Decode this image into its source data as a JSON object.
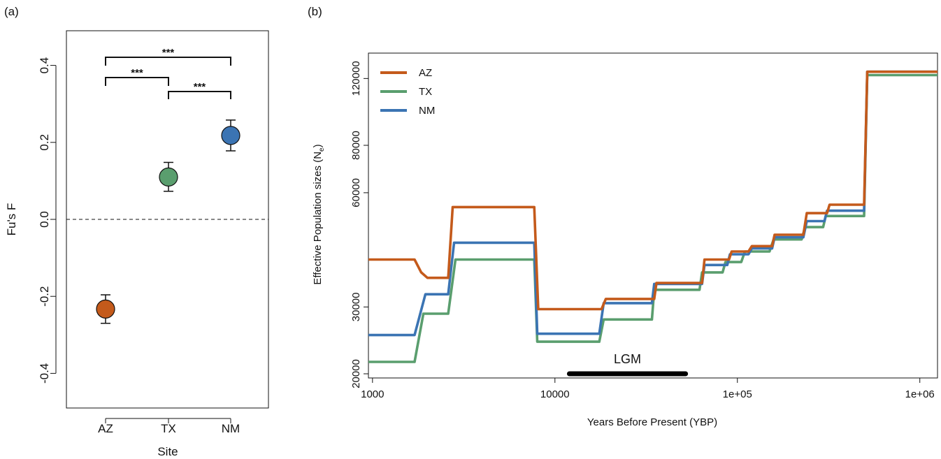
{
  "chart_data": [
    {
      "panel_label": "(a)",
      "type": "scatter",
      "categories": [
        "AZ",
        "TX",
        "NM"
      ],
      "values": [
        -0.233,
        0.11,
        0.218
      ],
      "error_low": [
        -0.27,
        0.073,
        0.178
      ],
      "error_high": [
        -0.196,
        0.148,
        0.258
      ],
      "point_colors": [
        "#c45a1b",
        "#5a9e6e",
        "#3b74b3"
      ],
      "xlabel": "Site",
      "ylabel": "Fu's F",
      "ylim": [
        -0.49,
        0.49
      ],
      "yticks": [
        -0.4,
        -0.2,
        0.0,
        0.2,
        0.4
      ],
      "ytick_labels": [
        "-0.4",
        "-0.2",
        "0.0",
        "0.2",
        "0.4"
      ],
      "reference_line": 0.0,
      "grid": false,
      "significance": [
        {
          "from": "AZ",
          "to": "NM",
          "label": "***"
        },
        {
          "from": "AZ",
          "to": "TX",
          "label": "***"
        },
        {
          "from": "TX",
          "to": "NM",
          "label": "***"
        }
      ]
    },
    {
      "panel_label": "(b)",
      "type": "line",
      "step": true,
      "x_scale": "log",
      "y_scale": "log",
      "xlim": [
        950,
        1250000
      ],
      "ylim": [
        19500,
        140000
      ],
      "xticks": [
        1000,
        10000,
        100000,
        1000000
      ],
      "xtick_labels": [
        "1000",
        "10000",
        "1e+05",
        "1e+06"
      ],
      "yticks": [
        20000,
        30000,
        60000,
        80000,
        120000
      ],
      "ytick_labels": [
        "20000",
        "30000",
        "60000",
        "80000",
        "120000"
      ],
      "xlabel": "Years Before Present (YBP)",
      "ylabel_main": "Effective Population sizes (N",
      "ylabel_sub": "e",
      "ylabel_end": ")",
      "legend_position": "top-left",
      "grid": false,
      "series": [
        {
          "name": "AZ",
          "color": "#c45a1b",
          "points": [
            [
              950,
              40000
            ],
            [
              1700,
              40000
            ],
            [
              1850,
              37000
            ],
            [
              2000,
              35800
            ],
            [
              2600,
              35800
            ],
            [
              2750,
              55000
            ],
            [
              7700,
              55000
            ],
            [
              8100,
              29600
            ],
            [
              18000,
              29600
            ],
            [
              19000,
              31500
            ],
            [
              35000,
              31500
            ],
            [
              36000,
              34700
            ],
            [
              64000,
              34700
            ],
            [
              66000,
              40000
            ],
            [
              90000,
              40000
            ],
            [
              93000,
              42000
            ],
            [
              115000,
              42000
            ],
            [
              120000,
              43400
            ],
            [
              155000,
              43400
            ],
            [
              160000,
              46500
            ],
            [
              230000,
              46500
            ],
            [
              240000,
              53000
            ],
            [
              310000,
              53000
            ],
            [
              320000,
              55800
            ],
            [
              495000,
              55800
            ],
            [
              515000,
              125000
            ],
            [
              1250000,
              125000
            ]
          ]
        },
        {
          "name": "TX",
          "color": "#5a9e6e",
          "points": [
            [
              950,
              21500
            ],
            [
              1700,
              21500
            ],
            [
              1900,
              28800
            ],
            [
              2600,
              28800
            ],
            [
              2850,
              40000
            ],
            [
              7700,
              40000
            ],
            [
              8000,
              24300
            ],
            [
              17500,
              24300
            ],
            [
              18500,
              27800
            ],
            [
              34000,
              27800
            ],
            [
              35000,
              33300
            ],
            [
              62000,
              33300
            ],
            [
              64000,
              37000
            ],
            [
              83000,
              37000
            ],
            [
              86000,
              39400
            ],
            [
              105000,
              39400
            ],
            [
              110000,
              42000
            ],
            [
              150000,
              42000
            ],
            [
              158000,
              45200
            ],
            [
              225000,
              45200
            ],
            [
              235000,
              48700
            ],
            [
              295000,
              48700
            ],
            [
              305000,
              52100
            ],
            [
              495000,
              52100
            ],
            [
              515000,
              122500
            ],
            [
              1250000,
              122500
            ]
          ]
        },
        {
          "name": "NM",
          "color": "#3b74b3",
          "points": [
            [
              950,
              25300
            ],
            [
              1700,
              25300
            ],
            [
              1950,
              32400
            ],
            [
              2600,
              32400
            ],
            [
              2800,
              44300
            ],
            [
              7700,
              44300
            ],
            [
              8000,
              25500
            ],
            [
              17500,
              25500
            ],
            [
              18500,
              30700
            ],
            [
              34000,
              30700
            ],
            [
              35000,
              34500
            ],
            [
              64000,
              34500
            ],
            [
              66000,
              38700
            ],
            [
              88000,
              38700
            ],
            [
              91000,
              41300
            ],
            [
              115000,
              41300
            ],
            [
              120000,
              42800
            ],
            [
              155000,
              42800
            ],
            [
              160000,
              45800
            ],
            [
              230000,
              45800
            ],
            [
              240000,
              50500
            ],
            [
              300000,
              50500
            ],
            [
              310000,
              53800
            ],
            [
              495000,
              53800
            ],
            [
              515000,
              125000
            ],
            [
              1250000,
              125000
            ]
          ]
        }
      ],
      "annotation": {
        "label": "LGM",
        "x_start": 12000,
        "x_end": 52000,
        "y": 20000
      }
    }
  ]
}
